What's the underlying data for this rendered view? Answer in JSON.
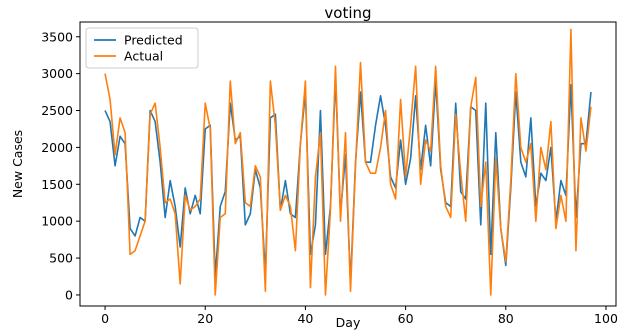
{
  "chart_data": {
    "type": "line",
    "title": "voting",
    "xlabel": "Day",
    "ylabel": "New Cases",
    "xlim": [
      -5,
      102
    ],
    "ylim": [
      -150,
      3700
    ],
    "xticks": [
      0,
      20,
      40,
      60,
      80,
      100
    ],
    "yticks": [
      0,
      500,
      1000,
      1500,
      2000,
      2500,
      3000,
      3500
    ],
    "legend_position": "top-left",
    "x": [
      0,
      1,
      2,
      3,
      4,
      5,
      6,
      7,
      8,
      9,
      10,
      11,
      12,
      13,
      14,
      15,
      16,
      17,
      18,
      19,
      20,
      21,
      22,
      23,
      24,
      25,
      26,
      27,
      28,
      29,
      30,
      31,
      32,
      33,
      34,
      35,
      36,
      37,
      38,
      39,
      40,
      41,
      42,
      43,
      44,
      45,
      46,
      47,
      48,
      49,
      50,
      51,
      52,
      53,
      54,
      55,
      56,
      57,
      58,
      59,
      60,
      61,
      62,
      63,
      64,
      65,
      66,
      67,
      68,
      69,
      70,
      71,
      72,
      73,
      74,
      75,
      76,
      77,
      78,
      79,
      80,
      81,
      82,
      83,
      84,
      85,
      86,
      87,
      88,
      89,
      90,
      91,
      92,
      93,
      94,
      95,
      96,
      97
    ],
    "series": [
      {
        "name": "Predicted",
        "color": "#1f77b4",
        "values": [
          2500,
          2350,
          1750,
          2150,
          2050,
          900,
          800,
          1050,
          1000,
          2500,
          2350,
          1800,
          1050,
          1550,
          1200,
          650,
          1450,
          1100,
          1350,
          1100,
          2250,
          2300,
          250,
          1200,
          1400,
          2600,
          2100,
          2150,
          950,
          1100,
          1700,
          1450,
          300,
          2400,
          2450,
          1150,
          1550,
          1100,
          1050,
          2050,
          2750,
          550,
          950,
          2500,
          550,
          1200,
          2950,
          1100,
          1900,
          150,
          1800,
          2750,
          1800,
          1800,
          2300,
          2700,
          2300,
          1600,
          1450,
          2100,
          1500,
          1850,
          2700,
          1700,
          2300,
          1750,
          2900,
          1700,
          1250,
          1200,
          2600,
          1400,
          1300,
          2550,
          2500,
          950,
          2600,
          550,
          2200,
          900,
          400,
          1450,
          2750,
          1800,
          1600,
          2400,
          1200,
          1650,
          1550,
          2000,
          1000,
          1550,
          1350,
          2850,
          1050,
          2050,
          2050,
          2750
        ]
      },
      {
        "name": "Actual",
        "color": "#ff7f0e",
        "values": [
          3000,
          2650,
          1900,
          2400,
          2200,
          550,
          600,
          800,
          1000,
          2450,
          2600,
          2000,
          1250,
          1300,
          1100,
          150,
          1350,
          1150,
          1200,
          1300,
          2600,
          2250,
          0,
          1050,
          1100,
          2900,
          2050,
          2200,
          1250,
          1200,
          1750,
          1600,
          50,
          2900,
          2300,
          1150,
          1350,
          1200,
          600,
          2050,
          2900,
          100,
          1600,
          2200,
          0,
          1150,
          3100,
          1000,
          2200,
          50,
          1750,
          3150,
          1800,
          1650,
          1650,
          2000,
          2500,
          1500,
          1300,
          2650,
          1600,
          2300,
          3100,
          1500,
          2100,
          1950,
          3100,
          1750,
          1200,
          1050,
          2450,
          1650,
          1000,
          2550,
          2950,
          1200,
          1800,
          0,
          1850,
          900,
          450,
          1550,
          3000,
          2000,
          1800,
          2050,
          1000,
          2000,
          1700,
          2350,
          900,
          1350,
          1000,
          3600,
          600,
          2400,
          1950,
          2550
        ]
      }
    ]
  }
}
